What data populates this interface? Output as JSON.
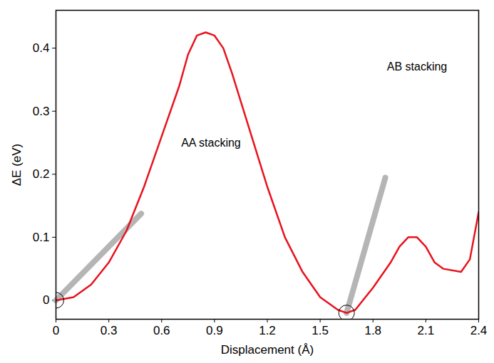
{
  "chart_data": {
    "type": "line",
    "x_label": "Displacement (Å)",
    "y_label": "ΔE (eV)",
    "x": [
      0,
      0.1,
      0.2,
      0.3,
      0.4,
      0.5,
      0.6,
      0.7,
      0.75,
      0.8,
      0.85,
      0.9,
      0.95,
      1.0,
      1.1,
      1.2,
      1.3,
      1.4,
      1.5,
      1.6,
      1.65,
      1.7,
      1.8,
      1.9,
      1.95,
      2.0,
      2.05,
      2.1,
      2.15,
      2.2,
      2.3,
      2.35,
      2.4
    ],
    "series": [
      {
        "name": "ΔE",
        "color": "#e8121c",
        "values": [
          0,
          0.005,
          0.025,
          0.06,
          0.11,
          0.18,
          0.26,
          0.34,
          0.39,
          0.42,
          0.425,
          0.42,
          0.4,
          0.36,
          0.27,
          0.18,
          0.1,
          0.045,
          0.005,
          -0.015,
          -0.02,
          -0.015,
          0.02,
          0.06,
          0.085,
          0.1,
          0.1,
          0.085,
          0.06,
          0.05,
          0.045,
          0.065,
          0.14
        ]
      }
    ],
    "xlim": [
      0,
      2.4
    ],
    "xticks": [
      0,
      0.3,
      0.6,
      0.9,
      1.2,
      1.5,
      1.8,
      2.1,
      2.4
    ],
    "ylim": [
      -0.03,
      0.46
    ],
    "yticks": [
      0,
      0.1,
      0.2,
      0.3,
      0.4
    ],
    "grid": false,
    "annotations": [
      {
        "text": "AA stacking",
        "x": 0.88,
        "y": 0.25,
        "point_x": 0,
        "point_y": 0
      },
      {
        "text": "AB stacking",
        "x": 2.05,
        "y": 0.37,
        "point_x": 1.65,
        "point_y": -0.02
      }
    ]
  }
}
